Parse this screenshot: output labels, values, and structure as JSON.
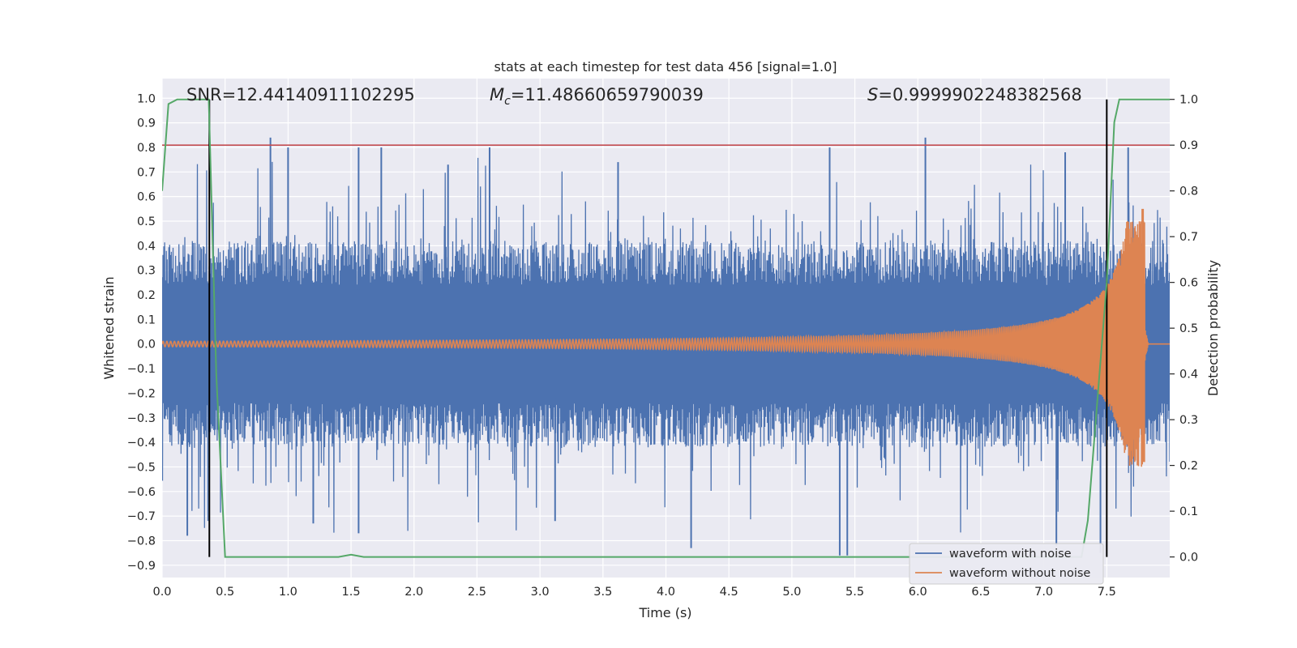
{
  "chart_data": {
    "type": "line",
    "title": "stats at each timestep for test data 456 [signal=1.0]",
    "xlabel": "Time (s)",
    "ylabel": "Whitened strain",
    "ylabel_right": "Detection probability",
    "xlim": [
      0.0,
      8.0
    ],
    "ylim": [
      -0.95,
      1.08
    ],
    "ylim_right": [
      -0.045,
      1.0455
    ],
    "x_ticks": [
      0.0,
      0.5,
      1.0,
      1.5,
      2.0,
      2.5,
      3.0,
      3.5,
      4.0,
      4.5,
      5.0,
      5.5,
      6.0,
      6.5,
      7.0,
      7.5
    ],
    "x_tick_labels": [
      "0.0",
      "0.5",
      "1.0",
      "1.5",
      "2.0",
      "2.5",
      "3.0",
      "3.5",
      "4.0",
      "4.5",
      "5.0",
      "5.5",
      "6.0",
      "6.5",
      "7.0",
      "7.5"
    ],
    "y_ticks": [
      1.0,
      0.9,
      0.8,
      0.7,
      0.6,
      0.5,
      0.4,
      0.3,
      0.2,
      0.1,
      0.0,
      -0.1,
      -0.2,
      -0.3,
      -0.4,
      -0.5,
      -0.6,
      -0.7,
      -0.8,
      -0.9
    ],
    "y_tick_labels": [
      "1.0",
      "0.9",
      "0.8",
      "0.7",
      "0.6",
      "0.5",
      "0.4",
      "0.3",
      "0.2",
      "0.1",
      "0.0",
      "−0.1",
      "−0.2",
      "−0.3",
      "−0.4",
      "−0.5",
      "−0.6",
      "−0.7",
      "−0.8",
      "−0.9"
    ],
    "y_right_ticks": [
      1.0,
      0.9,
      0.8,
      0.7,
      0.6,
      0.5,
      0.4,
      0.3,
      0.2,
      0.1,
      0.0
    ],
    "y_right_tick_labels": [
      "1.0",
      "0.9",
      "0.8",
      "0.7",
      "0.6",
      "0.5",
      "0.4",
      "0.3",
      "0.2",
      "0.1",
      "0.0"
    ],
    "annotations": {
      "snr": "SNR=12.44140911102295",
      "mc_symbol": "M",
      "mc_sub": "c",
      "mc_value": "=11.48660659790039",
      "s_symbol": "S",
      "s_value": "=0.9999902248382568"
    },
    "series": [
      {
        "name": "waveform with noise",
        "color": "#4c72b0",
        "spikes_top": [
          [
            0.86,
            0.84
          ],
          [
            1.0,
            0.8
          ],
          [
            1.56,
            0.8
          ],
          [
            1.74,
            0.8
          ],
          [
            2.27,
            0.73
          ],
          [
            2.6,
            0.8
          ],
          [
            3.62,
            0.74
          ],
          [
            5.3,
            0.8
          ],
          [
            6.06,
            0.84
          ],
          [
            7.17,
            0.78
          ],
          [
            7.67,
            0.8
          ]
        ],
        "spikes_bottom": [
          [
            0.2,
            -0.78
          ],
          [
            1.2,
            -0.73
          ],
          [
            1.56,
            -0.77
          ],
          [
            3.12,
            -0.72
          ],
          [
            4.2,
            -0.83
          ],
          [
            5.38,
            -0.86
          ],
          [
            5.44,
            -0.86
          ],
          [
            7.1,
            -0.82
          ],
          [
            7.45,
            -0.85
          ]
        ]
      },
      {
        "name": "waveform without noise",
        "color": "#dd8452",
        "chirp_end": 7.8,
        "peak": 0.55,
        "trough": -0.48
      },
      {
        "name": "detection probability",
        "color": "#55a868",
        "axis": "right",
        "points": [
          [
            0.0,
            0.8
          ],
          [
            0.05,
            0.99
          ],
          [
            0.12,
            1.0
          ],
          [
            0.37,
            1.0
          ],
          [
            0.43,
            0.4
          ],
          [
            0.5,
            0.0
          ],
          [
            1.4,
            0.0
          ],
          [
            1.5,
            0.005
          ],
          [
            1.6,
            0.0
          ],
          [
            7.3,
            0.0
          ],
          [
            7.35,
            0.08
          ],
          [
            7.5,
            0.6
          ],
          [
            7.56,
            0.95
          ],
          [
            7.6,
            1.0
          ],
          [
            8.0,
            1.0
          ]
        ]
      }
    ],
    "threshold_line": {
      "y_right": 0.9,
      "color": "#c44e52"
    },
    "vertical_lines": [
      0.375,
      7.5
    ],
    "legend_placement": "lower-right",
    "grid": true
  }
}
